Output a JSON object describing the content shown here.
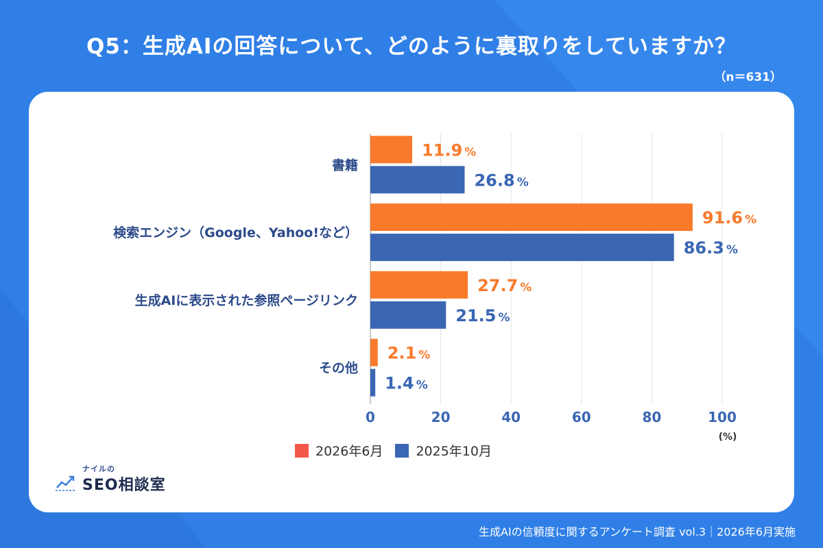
{
  "header": {
    "title": "Q5：生成AIの回答について、どのように裏取りをしていますか？",
    "sample_size": "（n＝631）"
  },
  "chart_data": {
    "type": "bar",
    "orientation": "horizontal",
    "categories": [
      "書籍",
      "検索エンジン（Google、Yahoo!など）",
      "生成AIに表示された参照ページリンク",
      "その他"
    ],
    "series": [
      {
        "name": "2026年6月",
        "color": "#f97a2b",
        "values": [
          11.9,
          91.6,
          27.7,
          2.1
        ]
      },
      {
        "name": "2025年10月",
        "color": "#3a66b3",
        "values": [
          26.8,
          86.3,
          21.5,
          1.4
        ]
      }
    ],
    "value_suffix": "%",
    "xlim": [
      0,
      100
    ],
    "xticks": [
      "0",
      "20",
      "40",
      "60",
      "80",
      "100"
    ],
    "xunit": "(%)",
    "grid": true,
    "legend_position": "bottom"
  },
  "legend": {
    "items": [
      {
        "label": "2026年6月",
        "color": "#f4584a"
      },
      {
        "label": "2025年10月",
        "color": "#3a66b3"
      }
    ]
  },
  "logo": {
    "small_text": "ナイルの",
    "main_text": "SEO相談室",
    "icon": "trend-chart-icon"
  },
  "footer": {
    "text": "生成AIの信頼度に関するアンケート調査 vol.3｜2026年6月実施"
  },
  "colors": {
    "background": "#2f7fe6",
    "category_label": "#2c4a8a",
    "tick_label": "#3a66b3"
  }
}
